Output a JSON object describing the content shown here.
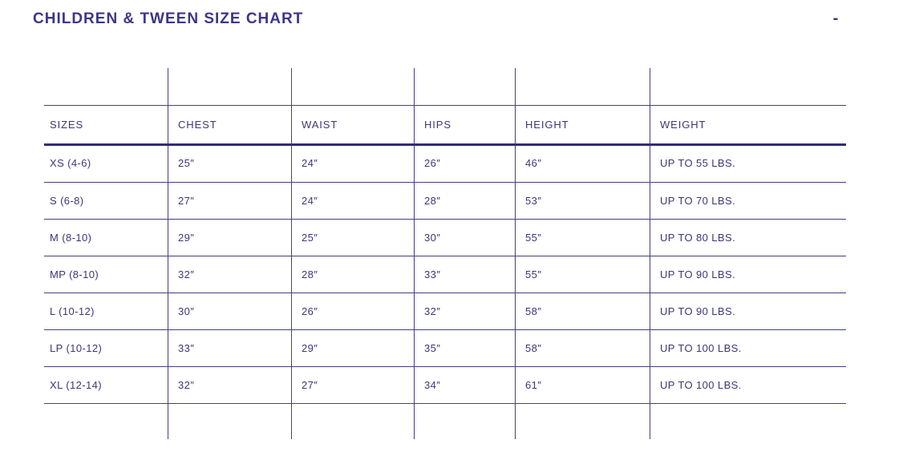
{
  "accent_color": "#3d3787",
  "line_color": "#43407f",
  "header": {
    "title": "CHILDREN & TWEEN SIZE CHART",
    "collapse_label": "-"
  },
  "table": {
    "columns": [
      "SIZES",
      "CHEST",
      "WAIST",
      "HIPS",
      "HEIGHT",
      "WEIGHT"
    ],
    "rows": [
      [
        "XS (4-6)",
        "25″",
        "24″",
        "26″",
        "46″",
        "UP TO 55 LBS."
      ],
      [
        "S (6-8)",
        "27″",
        "24″",
        "28″",
        "53″",
        "UP TO 70 LBS."
      ],
      [
        "M (8-10)",
        "29″",
        "25″",
        "30″",
        "55″",
        "UP TO 80 LBS."
      ],
      [
        "MP (8-10)",
        "32″",
        "28″",
        "33″",
        "55″",
        "UP TO 90 LBS."
      ],
      [
        "L (10-12)",
        "30″",
        "26″",
        "32″",
        "58″",
        "UP TO 90 LBS."
      ],
      [
        "LP (10-12)",
        "33″",
        "29″",
        "35″",
        "58″",
        "UP TO 100 LBS."
      ],
      [
        "XL (12-14)",
        "32″",
        "27″",
        "34″",
        "61″",
        "UP TO 100 LBS."
      ]
    ]
  }
}
